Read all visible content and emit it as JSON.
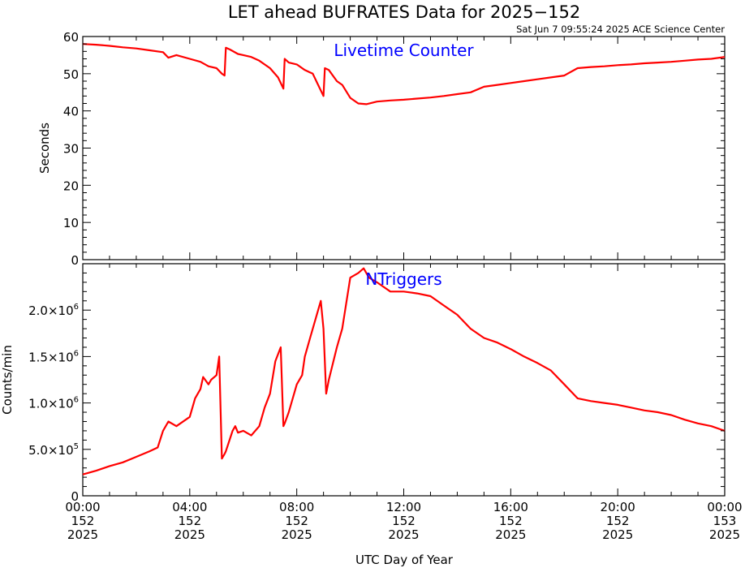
{
  "title": "LET ahead BUFRATES Data for 2025−152",
  "timestamp": "Sat Jun  7 09:55:24 2025 ACE Science Center",
  "xlabel": "UTC Day of Year",
  "colors": {
    "series": "#ff0000",
    "panel_label": "#0000ff",
    "axes": "#000000"
  },
  "x_ticks": [
    {
      "time": "00:00",
      "day": "152",
      "year": "2025"
    },
    {
      "time": "04:00",
      "day": "152",
      "year": "2025"
    },
    {
      "time": "08:00",
      "day": "152",
      "year": "2025"
    },
    {
      "time": "12:00",
      "day": "152",
      "year": "2025"
    },
    {
      "time": "16:00",
      "day": "152",
      "year": "2025"
    },
    {
      "time": "20:00",
      "day": "152",
      "year": "2025"
    },
    {
      "time": "00:00",
      "day": "153",
      "year": "2025"
    }
  ],
  "chart_data": [
    {
      "type": "line",
      "panel_label": "Livetime Counter",
      "ylabel": "Seconds",
      "xlim": [
        0,
        24
      ],
      "ylim": [
        0,
        60
      ],
      "y_ticks": [
        {
          "value": 0,
          "label": "0"
        },
        {
          "value": 10,
          "label": "10"
        },
        {
          "value": 20,
          "label": "20"
        },
        {
          "value": 30,
          "label": "30"
        },
        {
          "value": 40,
          "label": "40"
        },
        {
          "value": 50,
          "label": "50"
        },
        {
          "value": 60,
          "label": "60"
        }
      ],
      "series": [
        {
          "x": [
            0,
            0.5,
            1,
            1.5,
            2,
            2.5,
            3,
            3.2,
            3.5,
            4,
            4.4,
            4.7,
            5,
            5.2,
            5.3,
            5.35,
            5.5,
            5.8,
            6,
            6.3,
            6.6,
            7,
            7.3,
            7.5,
            7.55,
            7.7,
            8,
            8.3,
            8.6,
            8.8,
            9,
            9.05,
            9.2,
            9.5,
            9.7,
            10,
            10.3,
            10.6,
            11,
            11.5,
            12,
            12.5,
            13,
            13.5,
            14,
            14.5,
            15,
            15.5,
            16,
            16.5,
            17,
            17.5,
            18,
            18.5,
            19,
            19.5,
            20,
            20.5,
            21,
            21.5,
            22,
            22.5,
            23,
            23.5,
            24
          ],
          "y": [
            58,
            57.8,
            57.5,
            57.1,
            56.8,
            56.3,
            55.8,
            54.3,
            55,
            54,
            53.2,
            52,
            51.5,
            50,
            49.5,
            57,
            56.5,
            55.3,
            55,
            54.5,
            53.5,
            51.5,
            49,
            46,
            54,
            53,
            52.5,
            51,
            50,
            47,
            44,
            51.5,
            51,
            48,
            47,
            43.5,
            42,
            41.8,
            42.5,
            42.8,
            43,
            43.3,
            43.6,
            44,
            44.5,
            45,
            46.5,
            47,
            47.5,
            48,
            48.5,
            49,
            49.5,
            51.5,
            51.8,
            52,
            52.3,
            52.5,
            52.8,
            53,
            53.2,
            53.5,
            53.8,
            54,
            54.5
          ]
        }
      ]
    },
    {
      "type": "line",
      "panel_label": "NTriggers",
      "ylabel": "Counts/min",
      "xlim": [
        0,
        24
      ],
      "ylim": [
        0,
        2500000
      ],
      "y_ticks": [
        {
          "value": 0,
          "mant": "0",
          "exp": ""
        },
        {
          "value": 500000,
          "mant": "5.0×10",
          "exp": "5"
        },
        {
          "value": 1000000,
          "mant": "1.0×10",
          "exp": "6"
        },
        {
          "value": 1500000,
          "mant": "1.5×10",
          "exp": "6"
        },
        {
          "value": 2000000,
          "mant": "2.0×10",
          "exp": "6"
        }
      ],
      "series": [
        {
          "x": [
            0,
            0.5,
            1,
            1.5,
            2,
            2.5,
            2.8,
            3,
            3.2,
            3.5,
            4,
            4.2,
            4.4,
            4.5,
            4.7,
            4.8,
            5,
            5.1,
            5.2,
            5.3,
            5.35,
            5.6,
            5.7,
            5.8,
            6,
            6.3,
            6.6,
            6.8,
            7,
            7.2,
            7.4,
            7.5,
            7.55,
            7.7,
            8,
            8.2,
            8.3,
            8.5,
            8.8,
            8.9,
            9,
            9.1,
            9.2,
            9.5,
            9.7,
            10,
            10.3,
            10.5,
            10.7,
            11,
            11.5,
            12,
            12.5,
            13,
            13.5,
            14,
            14.5,
            15,
            15.5,
            16,
            16.5,
            17,
            17.5,
            18,
            18.5,
            19,
            19.5,
            20,
            20.5,
            21,
            21.5,
            22,
            22.5,
            23,
            23.5,
            24
          ],
          "y": [
            230000,
            270000,
            320000,
            360000,
            420000,
            480000,
            520000,
            700000,
            800000,
            750000,
            850000,
            1050000,
            1150000,
            1280000,
            1200000,
            1250000,
            1300000,
            1500000,
            400000,
            450000,
            480000,
            700000,
            750000,
            680000,
            700000,
            650000,
            750000,
            950000,
            1100000,
            1450000,
            1600000,
            750000,
            780000,
            900000,
            1200000,
            1300000,
            1500000,
            1700000,
            2000000,
            2100000,
            1800000,
            1100000,
            1250000,
            1600000,
            1800000,
            2350000,
            2400000,
            2450000,
            2350000,
            2300000,
            2200000,
            2200000,
            2180000,
            2150000,
            2050000,
            1950000,
            1800000,
            1700000,
            1650000,
            1580000,
            1500000,
            1430000,
            1350000,
            1200000,
            1050000,
            1020000,
            1000000,
            980000,
            950000,
            920000,
            900000,
            870000,
            820000,
            780000,
            750000,
            700000
          ]
        }
      ]
    }
  ]
}
